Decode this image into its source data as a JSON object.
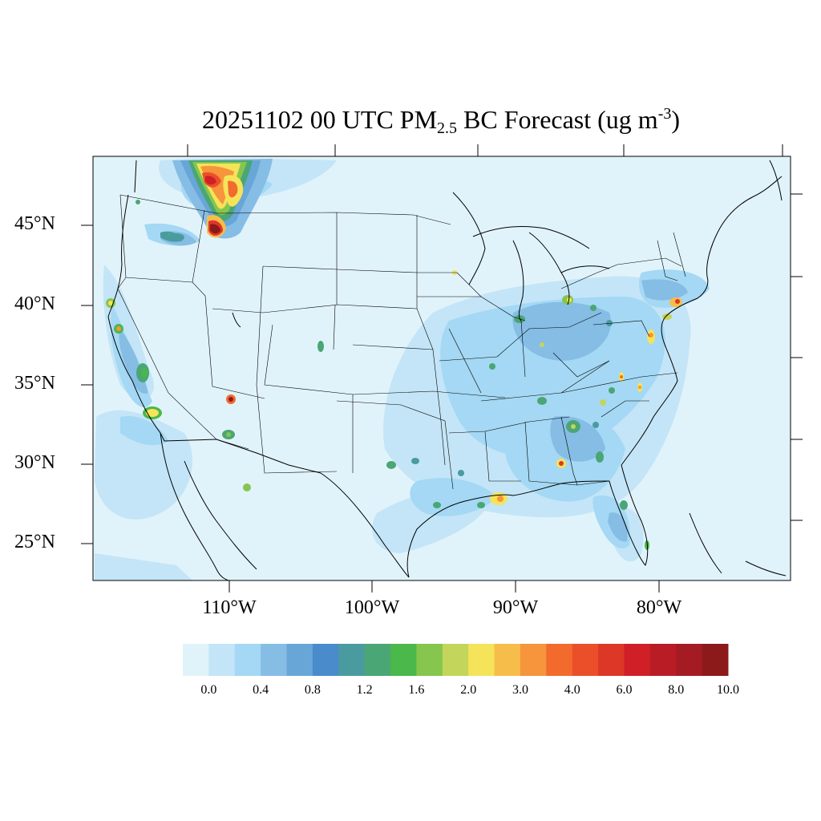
{
  "title": {
    "date_time": "20251102 00 UTC PM",
    "subscript": "2.5",
    "mid": " BC Forecast (ug m",
    "superscript": "-3",
    "end": ")"
  },
  "lat_labels": [
    "45°N",
    "40°N",
    "35°N",
    "30°N",
    "25°N"
  ],
  "lon_labels": [
    "110°W",
    "100°W",
    "90°W",
    "80°W"
  ],
  "colorbar": {
    "colors": [
      "#e1f3fa",
      "#c3e5f7",
      "#a4d8f4",
      "#86bde5",
      "#68a6d8",
      "#4a8ccb",
      "#4a9ba0",
      "#4aa675",
      "#4ab84a",
      "#86c54e",
      "#c3d55a",
      "#f5e35a",
      "#f7bd4a",
      "#f6953c",
      "#f36a2d",
      "#ea4f2a",
      "#dd3728",
      "#d01f27",
      "#b91c25",
      "#a51b23",
      "#8c1a1b"
    ],
    "labels": [
      "0.0",
      "0.4",
      "0.8",
      "1.2",
      "1.6",
      "2.0",
      "3.0",
      "4.0",
      "6.0",
      "8.0",
      "10.0"
    ]
  }
}
